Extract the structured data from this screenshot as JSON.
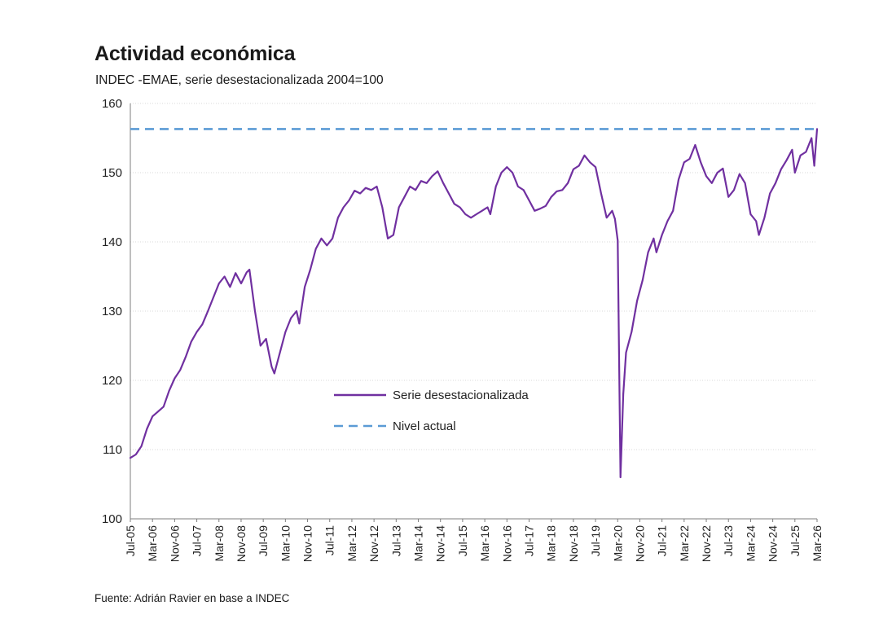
{
  "title": "Actividad económica",
  "subtitle": "INDEC -EMAE, serie desestacionalizada 2004=100",
  "source": "Fuente: Adrián Ravier en base a INDEC",
  "colors": {
    "series": "#7030a0",
    "level": "#5b9bd5",
    "grid": "#d9d9d9",
    "axis": "#7f7f7f"
  },
  "chart_data": {
    "type": "line",
    "ylim": [
      100,
      160
    ],
    "yticks": [
      100,
      110,
      120,
      130,
      140,
      150,
      160
    ],
    "xlim": [
      "2005-07",
      "2026-03"
    ],
    "xtick_labels": [
      "Jul-05",
      "Mar-06",
      "Nov-06",
      "Jul-07",
      "Mar-08",
      "Nov-08",
      "Jul-09",
      "Mar-10",
      "Nov-10",
      "Jul-11",
      "Mar-12",
      "Nov-12",
      "Jul-13",
      "Mar-14",
      "Nov-14",
      "Jul-15",
      "Mar-16",
      "Nov-16",
      "Jul-17",
      "Mar-18",
      "Nov-18",
      "Jul-19",
      "Mar-20",
      "Nov-20",
      "Jul-21",
      "Mar-22",
      "Nov-22",
      "Jul-23",
      "Mar-24",
      "Nov-24",
      "Jul-25",
      "Mar-26"
    ],
    "legend": {
      "placement": "center-left",
      "entries": [
        "Serie desestacionalizada",
        "Nivel actual"
      ]
    },
    "series": [
      {
        "name": "Serie desestacionalizada",
        "style": "solid",
        "points": [
          [
            "2005-07",
            108.8
          ],
          [
            "2005-09",
            109.3
          ],
          [
            "2005-11",
            110.5
          ],
          [
            "2006-01",
            113.0
          ],
          [
            "2006-03",
            114.8
          ],
          [
            "2006-05",
            115.5
          ],
          [
            "2006-07",
            116.2
          ],
          [
            "2006-09",
            118.5
          ],
          [
            "2006-11",
            120.3
          ],
          [
            "2007-01",
            121.5
          ],
          [
            "2007-03",
            123.4
          ],
          [
            "2007-05",
            125.6
          ],
          [
            "2007-07",
            127.0
          ],
          [
            "2007-09",
            128.1
          ],
          [
            "2007-11",
            130.0
          ],
          [
            "2008-01",
            132.0
          ],
          [
            "2008-03",
            134.0
          ],
          [
            "2008-05",
            135.0
          ],
          [
            "2008-07",
            133.5
          ],
          [
            "2008-09",
            135.5
          ],
          [
            "2008-11",
            134.0
          ],
          [
            "2009-01",
            135.6
          ],
          [
            "2009-02",
            136.0
          ],
          [
            "2009-04",
            130.0
          ],
          [
            "2009-06",
            125.0
          ],
          [
            "2009-08",
            126.0
          ],
          [
            "2009-10",
            122.0
          ],
          [
            "2009-11",
            121.0
          ],
          [
            "2010-01",
            124.0
          ],
          [
            "2010-03",
            127.0
          ],
          [
            "2010-05",
            129.0
          ],
          [
            "2010-07",
            130.0
          ],
          [
            "2010-08",
            128.2
          ],
          [
            "2010-10",
            133.5
          ],
          [
            "2010-12",
            136.0
          ],
          [
            "2011-02",
            139.0
          ],
          [
            "2011-04",
            140.5
          ],
          [
            "2011-06",
            139.5
          ],
          [
            "2011-08",
            140.5
          ],
          [
            "2011-10",
            143.5
          ],
          [
            "2011-12",
            145.0
          ],
          [
            "2012-02",
            146.0
          ],
          [
            "2012-04",
            147.4
          ],
          [
            "2012-06",
            147.0
          ],
          [
            "2012-08",
            147.8
          ],
          [
            "2012-10",
            147.5
          ],
          [
            "2012-12",
            148.0
          ],
          [
            "2013-02",
            145.0
          ],
          [
            "2013-04",
            140.5
          ],
          [
            "2013-06",
            141.0
          ],
          [
            "2013-08",
            145.0
          ],
          [
            "2013-10",
            146.5
          ],
          [
            "2013-12",
            148.0
          ],
          [
            "2014-02",
            147.5
          ],
          [
            "2014-04",
            148.8
          ],
          [
            "2014-06",
            148.5
          ],
          [
            "2014-08",
            149.5
          ],
          [
            "2014-10",
            150.2
          ],
          [
            "2014-12",
            148.5
          ],
          [
            "2015-02",
            147.0
          ],
          [
            "2015-04",
            145.5
          ],
          [
            "2015-06",
            145.0
          ],
          [
            "2015-08",
            144.0
          ],
          [
            "2015-10",
            143.5
          ],
          [
            "2015-12",
            144.0
          ],
          [
            "2016-02",
            144.5
          ],
          [
            "2016-04",
            145.0
          ],
          [
            "2016-05",
            144.0
          ],
          [
            "2016-07",
            148.0
          ],
          [
            "2016-09",
            150.0
          ],
          [
            "2016-11",
            150.8
          ],
          [
            "2017-01",
            150.0
          ],
          [
            "2017-03",
            148.0
          ],
          [
            "2017-05",
            147.5
          ],
          [
            "2017-07",
            146.0
          ],
          [
            "2017-09",
            144.5
          ],
          [
            "2017-11",
            144.8
          ],
          [
            "2018-01",
            145.2
          ],
          [
            "2018-03",
            146.5
          ],
          [
            "2018-05",
            147.3
          ],
          [
            "2018-07",
            147.5
          ],
          [
            "2018-09",
            148.5
          ],
          [
            "2018-11",
            150.5
          ],
          [
            "2019-01",
            151.0
          ],
          [
            "2019-03",
            152.5
          ],
          [
            "2019-05",
            151.5
          ],
          [
            "2019-07",
            150.8
          ],
          [
            "2019-09",
            147.0
          ],
          [
            "2019-11",
            143.5
          ],
          [
            "2020-01",
            144.5
          ],
          [
            "2020-02",
            143.3
          ],
          [
            "2020-03",
            140.2
          ],
          [
            "2020-04",
            106.0
          ],
          [
            "2020-05",
            118.0
          ],
          [
            "2020-06",
            124.0
          ],
          [
            "2020-08",
            127.0
          ],
          [
            "2020-10",
            131.5
          ],
          [
            "2020-12",
            134.5
          ],
          [
            "2021-02",
            138.5
          ],
          [
            "2021-04",
            140.5
          ],
          [
            "2021-05",
            138.5
          ],
          [
            "2021-07",
            141.0
          ],
          [
            "2021-09",
            143.0
          ],
          [
            "2021-11",
            144.5
          ],
          [
            "2022-01",
            149.0
          ],
          [
            "2022-03",
            151.5
          ],
          [
            "2022-05",
            152.0
          ],
          [
            "2022-07",
            154.0
          ],
          [
            "2022-09",
            151.5
          ],
          [
            "2022-11",
            149.5
          ],
          [
            "2023-01",
            148.5
          ],
          [
            "2023-03",
            150.0
          ],
          [
            "2023-05",
            150.6
          ],
          [
            "2023-07",
            146.5
          ],
          [
            "2023-09",
            147.5
          ],
          [
            "2023-11",
            149.8
          ],
          [
            "2024-01",
            148.5
          ],
          [
            "2024-03",
            144.0
          ],
          [
            "2024-05",
            143.0
          ],
          [
            "2024-06",
            141.0
          ],
          [
            "2024-08",
            143.5
          ],
          [
            "2024-10",
            147.0
          ],
          [
            "2024-12",
            148.5
          ],
          [
            "2025-02",
            150.5
          ],
          [
            "2025-04",
            151.8
          ],
          [
            "2025-06",
            153.3
          ],
          [
            "2025-07",
            150.0
          ],
          [
            "2025-09",
            152.5
          ],
          [
            "2025-11",
            153.0
          ],
          [
            "2026-01",
            155.0
          ],
          [
            "2026-02",
            151.0
          ],
          [
            "2026-03",
            156.3
          ]
        ]
      },
      {
        "name": "Nivel actual",
        "style": "dashed",
        "constant": 156.3
      }
    ]
  }
}
